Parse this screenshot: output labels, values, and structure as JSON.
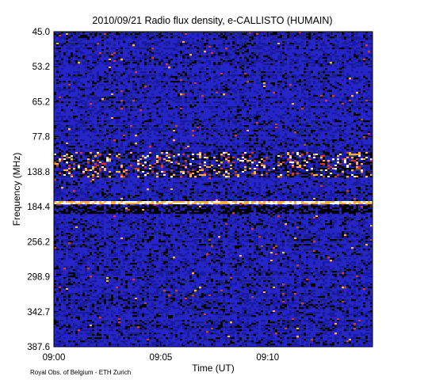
{
  "chart_data": {
    "type": "heatmap",
    "title": "2010/09/21  Radio flux density, e-CALLISTO (HUMAIN)",
    "xlabel": "Time (UT)",
    "ylabel": "Frequency (MHz)",
    "x_tick_labels": [
      "09:00",
      "09:05",
      "09:10"
    ],
    "x_ticks_minutes": [
      0,
      5,
      10
    ],
    "x_range_minutes": [
      0,
      14.9
    ],
    "y_tick_labels": [
      "45.0",
      "53.2",
      "65.2",
      "77.8",
      "138.8",
      "184.4",
      "256.2",
      "298.9",
      "342.7",
      "387.6"
    ],
    "y_axis_direction": "frequency increases downward",
    "colormap": [
      "#000000",
      "#1a1a9e",
      "#3a3ae8",
      "#d23a2a",
      "#ffb040",
      "#ffffff"
    ],
    "background_color": "#2626c8",
    "features": [
      {
        "description_free": true,
        "band_y_label": "138.8",
        "intensity": "strong bright bursts"
      },
      {
        "band_y_label": "184.4",
        "intensity": "strong horizontal line"
      }
    ],
    "credit": "Royal Obs. of Belgium - ETH Zurich"
  }
}
